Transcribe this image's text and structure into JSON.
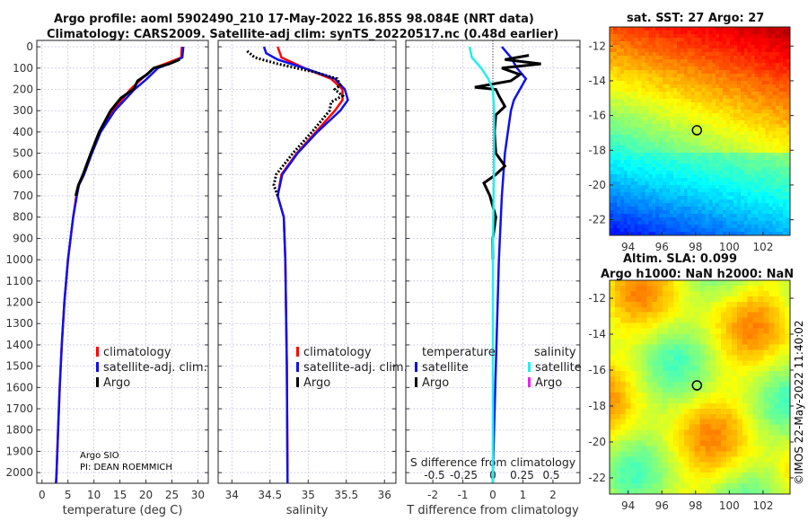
{
  "titles": {
    "line1": "Argo profile: aoml 5902490_210 17-May-2022 16.85S 98.084E (NRT data)",
    "line2": "Climatology: CARS2009. Satellite-adj clim: synTS_20220517.nc (0.48d earlier)",
    "map1": "sat. SST: 27 Argo: 27",
    "map2a": "Altim. SLA: 0.099",
    "map2b": "Argo h1000: NaN h2000: NaN",
    "copyright": "©IMOS 22-May-2022 11:40:02",
    "pi1": "Argo SIO",
    "pi2": "PI: DEAN ROEMMICH"
  },
  "colors": {
    "clim": "#ff0000",
    "sat": "#1010ee",
    "argo": "#000000",
    "ssat": "#22eeee",
    "sargo": "#ee22ee"
  },
  "chart_data": [
    {
      "type": "line",
      "name": "temperature",
      "xlabel": "temperature (deg C)",
      "xlim": [
        -1,
        32
      ],
      "ylim": [
        -30,
        2050
      ],
      "xticks": [
        0,
        5,
        10,
        15,
        20,
        25,
        30
      ],
      "yticks": [
        0,
        100,
        200,
        300,
        400,
        500,
        600,
        700,
        800,
        900,
        1000,
        1100,
        1200,
        1300,
        1400,
        1500,
        1600,
        1700,
        1800,
        1900,
        2000
      ],
      "legend": [
        "climatology",
        "satellite-adj. clim.",
        "Argo"
      ],
      "series": [
        {
          "name": "climatology",
          "color": "#ff0000",
          "depth": [
            0,
            50,
            75,
            100,
            150,
            200,
            250,
            300,
            400,
            500,
            600,
            650,
            700,
            800,
            1000,
            1200,
            1400,
            1600,
            1800,
            2000,
            2050
          ],
          "values": [
            26.9,
            26.8,
            24.2,
            21.5,
            19.2,
            17,
            15.3,
            13.6,
            11,
            9.5,
            8,
            7,
            6.6,
            6,
            5,
            4.3,
            3.8,
            3.4,
            3.1,
            2.8,
            2.7
          ]
        },
        {
          "name": "satellite-adj. clim.",
          "color": "#1010ee",
          "depth": [
            0,
            50,
            75,
            100,
            150,
            200,
            250,
            300,
            400,
            500,
            600,
            650,
            700,
            800,
            1000,
            1200,
            1400,
            1600,
            1800,
            2000,
            2050
          ],
          "values": [
            27.2,
            27,
            25,
            22.3,
            20.2,
            17.8,
            15.9,
            14,
            11.3,
            9.6,
            8.1,
            7.1,
            6.7,
            6,
            5,
            4.3,
            3.8,
            3.4,
            3.1,
            2.8,
            2.7
          ]
        },
        {
          "name": "Argo",
          "color": "#000000",
          "depth": [
            60,
            80,
            100,
            130,
            160,
            200,
            240,
            300,
            400,
            500,
            600,
            650,
            700
          ],
          "values": [
            26.5,
            24.5,
            21.5,
            20.2,
            18.4,
            17.6,
            15.2,
            13.2,
            11,
            9.4,
            7.9,
            7,
            6.5
          ]
        }
      ]
    },
    {
      "type": "line",
      "name": "salinity",
      "xlabel": "salinity",
      "xlim": [
        33.82,
        36.15
      ],
      "ylim": [
        -30,
        2050
      ],
      "xticks": [
        34,
        34.5,
        35,
        35.5,
        36
      ],
      "legend": [
        "climatology",
        "satellite-adj. clim.",
        "Argo"
      ],
      "series": [
        {
          "name": "climatology",
          "color": "#ff0000",
          "depth": [
            0,
            50,
            100,
            150,
            200,
            250,
            300,
            400,
            500,
            600,
            700,
            800,
            1000,
            1500,
            2050
          ],
          "values": [
            34.6,
            34.65,
            34.95,
            35.3,
            35.45,
            35.45,
            35.35,
            35.1,
            34.85,
            34.65,
            34.6,
            34.68,
            34.7,
            34.72,
            34.73
          ]
        },
        {
          "name": "satellite-adj. clim.",
          "color": "#1010ee",
          "depth": [
            0,
            30,
            60,
            100,
            150,
            200,
            250,
            300,
            400,
            500,
            600,
            700,
            800,
            1000,
            1500,
            2050
          ],
          "values": [
            34.42,
            34.45,
            34.6,
            34.95,
            35.35,
            35.48,
            35.52,
            35.42,
            35.12,
            34.86,
            34.66,
            34.6,
            34.68,
            34.7,
            34.72,
            34.73
          ]
        },
        {
          "name": "Argo",
          "color": "#000000",
          "depth": [
            20,
            50,
            80,
            120,
            150,
            180,
            200,
            230,
            260,
            300,
            400,
            500,
            600,
            650,
            700
          ],
          "values": [
            34.2,
            34.3,
            34.6,
            35.1,
            35.38,
            35.42,
            35.35,
            35.45,
            35.3,
            35.28,
            35.05,
            34.8,
            34.58,
            34.55,
            34.6
          ]
        }
      ]
    },
    {
      "type": "line",
      "name": "difference",
      "xlabel": "T difference from climatology",
      "slabel": "S difference from climatology",
      "xlim": [
        -2.9,
        2.9
      ],
      "ylim": [
        -30,
        2050
      ],
      "xticks": [
        -2,
        -1,
        0,
        1,
        2
      ],
      "sticks": [
        "-0.5",
        "-0.25",
        "0",
        "0.25",
        "0.5"
      ],
      "svals": [
        -0.5,
        -0.25,
        0,
        0.25,
        0.5
      ],
      "legend_t": "temperature",
      "legend_s": "salinity",
      "legend": [
        "satellite",
        "Argo",
        "satellite",
        "Argo"
      ],
      "series": [
        {
          "name": "T satellite",
          "color": "#1010ee",
          "unit": "T",
          "depth": [
            0,
            50,
            100,
            150,
            200,
            250,
            300,
            400,
            500,
            700,
            1000,
            1500,
            2000,
            2050
          ],
          "values": [
            0.3,
            0.6,
            0.8,
            1.1,
            0.9,
            0.7,
            0.6,
            0.5,
            0.4,
            0.3,
            0.2,
            0.1,
            0,
            0
          ]
        },
        {
          "name": "T Argo",
          "color": "#000000",
          "unit": "T",
          "depth": [
            40,
            60,
            80,
            100,
            130,
            160,
            190,
            200,
            230,
            280,
            320,
            400,
            500,
            560,
            600,
            640,
            700,
            800,
            900,
            1000
          ],
          "values": [
            1.2,
            0.4,
            1.6,
            0.3,
            0.9,
            0.6,
            -0.6,
            0.1,
            0.2,
            0.4,
            0.1,
            0.05,
            0.1,
            0.4,
            0.1,
            -0.3,
            -0.1,
            0.1,
            0,
            0
          ]
        },
        {
          "name": "S satellite",
          "color": "#22eeee",
          "unit": "S",
          "depth": [
            0,
            50,
            100,
            150,
            200,
            300,
            500,
            1000,
            1500,
            2050
          ],
          "values": [
            -0.2,
            -0.18,
            -0.1,
            -0.04,
            0,
            0.01,
            0.01,
            0,
            0,
            0
          ]
        },
        {
          "name": "S Argo",
          "color": "#ee22ee",
          "unit": "S",
          "depth": [],
          "values": []
        }
      ]
    },
    {
      "type": "heatmap",
      "name": "sst-map",
      "xticks": [
        94,
        96,
        98,
        100,
        102
      ],
      "yticks": [
        -12,
        -14,
        -16,
        -18,
        -20,
        -22
      ],
      "xlim": [
        92.9,
        103.6
      ],
      "ylim": [
        -10.9,
        -22.9
      ],
      "argo": [
        98.08,
        -16.85
      ]
    },
    {
      "type": "heatmap",
      "name": "sla-map",
      "xticks": [
        94,
        96,
        98,
        100,
        102
      ],
      "yticks": [
        -12,
        -14,
        -16,
        -18,
        -20,
        -22
      ],
      "xlim": [
        92.9,
        103.6
      ],
      "ylim": [
        -11,
        -22.9
      ],
      "argo": [
        98.08,
        -16.85
      ]
    }
  ]
}
